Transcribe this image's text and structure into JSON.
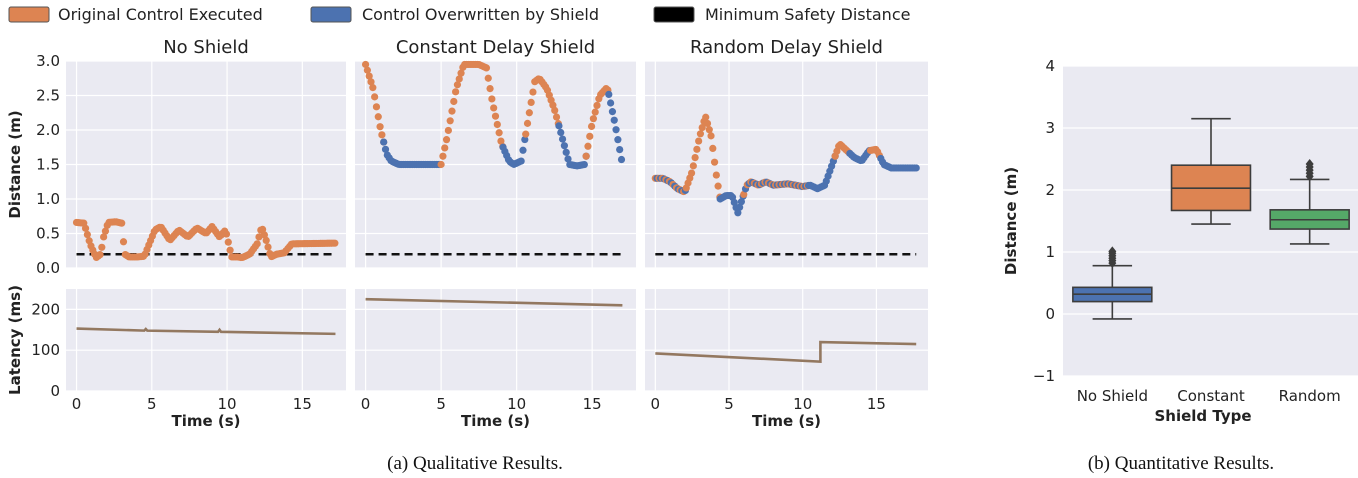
{
  "legend": [
    {
      "label": "Original Control Executed",
      "color": "#dd8452"
    },
    {
      "label": "Control Overwritten by Shield",
      "color": "#4c72b0"
    },
    {
      "label": "Minimum Safety Distance",
      "color": "#000000"
    }
  ],
  "captions": {
    "a": "(a) Qualitative Results.",
    "b": "(b) Quantitative Results."
  },
  "chart_data": [
    {
      "type": "scatter",
      "title": "No Shield",
      "xlabel": "",
      "ylabel": "Distance (m)",
      "xlim": [
        -0.7,
        17.9
      ],
      "ylim": [
        0,
        3.0
      ],
      "yticks": [
        0.0,
        0.5,
        1.0,
        1.5,
        2.0,
        2.5,
        3.0
      ],
      "min_safety_distance": 0.2,
      "x_keys": [
        0,
        0.5,
        0.9,
        1.3,
        1.6,
        1.8,
        2.1,
        2.6,
        3.0,
        3.2,
        3.5,
        4.0,
        4.5,
        5.2,
        5.6,
        6.2,
        6.8,
        7.4,
        8.0,
        8.6,
        9.0,
        9.5,
        9.9,
        10.3,
        10.7,
        11.0,
        11.5,
        12.0,
        12.3,
        12.6,
        12.9,
        13.3,
        13.8,
        14.3,
        17.2
      ],
      "y_keys": [
        0.66,
        0.65,
        0.35,
        0.15,
        0.2,
        0.45,
        0.66,
        0.67,
        0.65,
        0.2,
        0.16,
        0.16,
        0.17,
        0.55,
        0.6,
        0.4,
        0.55,
        0.45,
        0.58,
        0.5,
        0.6,
        0.45,
        0.55,
        0.16,
        0.16,
        0.15,
        0.2,
        0.35,
        0.6,
        0.4,
        0.16,
        0.2,
        0.22,
        0.35,
        0.36
      ],
      "segments": [
        {
          "x0": 0,
          "x1": 17.2,
          "class": "original"
        }
      ],
      "point_step": 0.12
    },
    {
      "type": "scatter",
      "title": "Constant Delay Shield",
      "xlabel": "",
      "ylabel": "",
      "xlim": [
        -0.7,
        17.9
      ],
      "ylim": [
        0,
        3.0
      ],
      "min_safety_distance": 0.2,
      "x_keys": [
        0,
        0.5,
        1.0,
        1.4,
        1.7,
        2.2,
        3.0,
        4.0,
        5.0,
        5.4,
        6.0,
        6.5,
        7.5,
        8.0,
        8.4,
        9.0,
        9.5,
        9.8,
        10.3,
        10.8,
        11.2,
        11.5,
        12.0,
        12.5,
        13.0,
        13.5,
        14.0,
        14.5,
        15.0,
        15.5,
        16.0,
        16.5,
        17.0
      ],
      "y_keys": [
        2.95,
        2.6,
        2.0,
        1.65,
        1.55,
        1.5,
        1.5,
        1.5,
        1.5,
        1.9,
        2.6,
        2.95,
        2.95,
        2.9,
        2.4,
        1.8,
        1.55,
        1.5,
        1.55,
        2.2,
        2.7,
        2.75,
        2.6,
        2.3,
        1.9,
        1.5,
        1.48,
        1.5,
        2.1,
        2.5,
        2.62,
        2.1,
        1.5
      ],
      "segments": [
        {
          "x0": 0,
          "x1": 1.2,
          "class": "original"
        },
        {
          "x0": 1.2,
          "x1": 5.0,
          "class": "overwritten"
        },
        {
          "x0": 5.0,
          "x1": 9.1,
          "class": "original"
        },
        {
          "x0": 9.1,
          "x1": 10.6,
          "class": "overwritten"
        },
        {
          "x0": 10.6,
          "x1": 12.8,
          "class": "original"
        },
        {
          "x0": 12.8,
          "x1": 14.6,
          "class": "overwritten"
        },
        {
          "x0": 14.6,
          "x1": 16.1,
          "class": "original"
        },
        {
          "x0": 16.1,
          "x1": 17.0,
          "class": "overwritten"
        }
      ],
      "point_step": 0.12
    },
    {
      "type": "scatter",
      "title": "Random Delay Shield",
      "xlabel": "",
      "ylabel": "",
      "xlim": [
        -0.7,
        18.5
      ],
      "ylim": [
        0,
        3.0
      ],
      "min_safety_distance": 0.2,
      "x_keys": [
        0,
        0.5,
        1.0,
        1.5,
        2.0,
        2.5,
        3.0,
        3.4,
        3.8,
        4.1,
        4.4,
        4.8,
        5.2,
        5.6,
        5.9,
        6.2,
        6.5,
        7.0,
        7.5,
        8.0,
        9.0,
        10.0,
        10.5,
        11.0,
        11.5,
        12.0,
        12.5,
        13.0,
        13.5,
        14.0,
        14.5,
        15.0,
        15.5,
        16.0,
        17.0,
        17.7
      ],
      "y_keys": [
        1.3,
        1.3,
        1.25,
        1.15,
        1.1,
        1.4,
        1.9,
        2.2,
        1.9,
        1.4,
        1.0,
        1.05,
        1.05,
        0.8,
        1.0,
        1.2,
        1.25,
        1.2,
        1.25,
        1.2,
        1.22,
        1.18,
        1.2,
        1.15,
        1.2,
        1.5,
        1.8,
        1.7,
        1.6,
        1.55,
        1.7,
        1.72,
        1.5,
        1.45,
        1.45,
        1.45
      ],
      "segments": [
        {
          "x0": 0,
          "x1": 2.1,
          "class": "mixed"
        },
        {
          "x0": 2.1,
          "x1": 4.4,
          "class": "original"
        },
        {
          "x0": 4.4,
          "x1": 6.0,
          "class": "overwritten"
        },
        {
          "x0": 6.0,
          "x1": 10.4,
          "class": "mixed"
        },
        {
          "x0": 10.4,
          "x1": 12.2,
          "class": "overwritten"
        },
        {
          "x0": 12.2,
          "x1": 13.2,
          "class": "original"
        },
        {
          "x0": 13.2,
          "x1": 14.6,
          "class": "overwritten"
        },
        {
          "x0": 14.6,
          "x1": 15.3,
          "class": "original"
        },
        {
          "x0": 15.3,
          "x1": 17.7,
          "class": "overwritten"
        }
      ],
      "point_step": 0.12
    },
    {
      "type": "line",
      "title": "",
      "xlabel": "Time (s)",
      "ylabel": "Latency (ms)",
      "xlim": [
        -0.7,
        17.9
      ],
      "ylim": [
        0,
        250
      ],
      "xticks": [
        0,
        5,
        10,
        15
      ],
      "yticks": [
        0,
        100,
        200
      ],
      "series": [
        {
          "color": "#937860",
          "x": [
            0,
            4.5,
            4.6,
            4.7,
            9.4,
            9.5,
            9.6,
            17.2
          ],
          "y": [
            153,
            148,
            152,
            148,
            145,
            150,
            145,
            140
          ]
        }
      ]
    },
    {
      "type": "line",
      "title": "",
      "xlabel": "Time (s)",
      "ylabel": "",
      "xlim": [
        -0.7,
        17.9
      ],
      "ylim": [
        0,
        250
      ],
      "xticks": [
        0,
        5,
        10,
        15
      ],
      "series": [
        {
          "color": "#937860",
          "x": [
            0,
            17.0
          ],
          "y": [
            225,
            210
          ]
        }
      ]
    },
    {
      "type": "line",
      "title": "",
      "xlabel": "Time (s)",
      "ylabel": "",
      "xlim": [
        -0.7,
        18.5
      ],
      "ylim": [
        0,
        250
      ],
      "xticks": [
        0,
        5,
        10,
        15
      ],
      "series": [
        {
          "color": "#937860",
          "x": [
            0,
            11.2,
            11.2,
            17.7
          ],
          "y": [
            92,
            72,
            120,
            115
          ]
        }
      ]
    },
    {
      "type": "box",
      "title": "",
      "xlabel": "Shield Type",
      "ylabel": "Distance (m)",
      "ylim": [
        -1,
        4
      ],
      "yticks": [
        -1,
        0,
        1,
        2,
        3,
        4
      ],
      "categories": [
        "No Shield",
        "Constant",
        "Random"
      ],
      "boxes": [
        {
          "color": "#4c72b0",
          "q1": 0.2,
          "median": 0.32,
          "q3": 0.43,
          "whisker_low": -0.08,
          "whisker_high": 0.78,
          "outliers": [
            0.82,
            0.86,
            0.9,
            0.94,
            0.98,
            1.01
          ]
        },
        {
          "color": "#dd8452",
          "q1": 1.67,
          "median": 2.03,
          "q3": 2.4,
          "whisker_low": 1.45,
          "whisker_high": 3.15,
          "outliers": []
        },
        {
          "color": "#55a868",
          "q1": 1.37,
          "median": 1.52,
          "q3": 1.68,
          "whisker_low": 1.13,
          "whisker_high": 2.17,
          "outliers": [
            2.22,
            2.27,
            2.32,
            2.37,
            2.42
          ]
        }
      ]
    }
  ]
}
